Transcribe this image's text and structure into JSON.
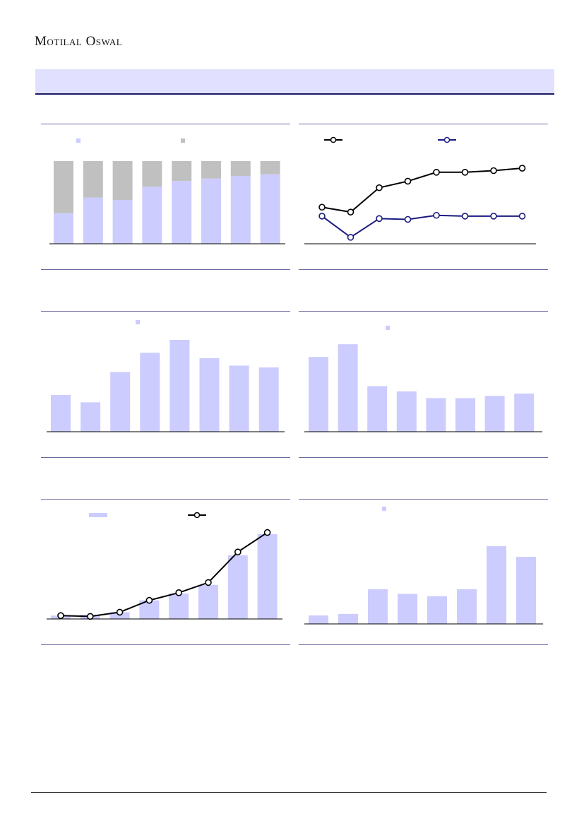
{
  "header": {
    "brand": "Motilal Oswal",
    "banner_title": ""
  },
  "colors": {
    "primary_bar": "#ccccff",
    "secondary_bar": "#c0c0c0",
    "line_black": "#000000",
    "line_navy": "#1a1a80",
    "rule": "#6b6ba0"
  },
  "chart_data": [
    {
      "type": "bar",
      "stacked": true,
      "legend": [
        "",
        ""
      ],
      "categories": [
        "",
        "",
        "",
        "",
        "",
        "",
        "",
        ""
      ],
      "series": [
        {
          "values": [
            37,
            56,
            53,
            69,
            76,
            79,
            82,
            84
          ]
        },
        {
          "values": [
            63,
            44,
            47,
            31,
            24,
            21,
            18,
            16
          ]
        }
      ],
      "ylim": [
        0,
        100
      ]
    },
    {
      "type": "line",
      "legend": [
        "",
        ""
      ],
      "categories": [
        "",
        "",
        "",
        "",
        "",
        "",
        "",
        ""
      ],
      "series": [
        {
          "values": [
            45,
            39,
            69,
            77,
            88,
            88,
            90,
            93
          ]
        },
        {
          "values": [
            34,
            8,
            31,
            30,
            35,
            34,
            34,
            34
          ]
        }
      ],
      "ylim": [
        0,
        100
      ]
    },
    {
      "type": "bar",
      "legend": [
        ""
      ],
      "categories": [
        "",
        "",
        "",
        "",
        "",
        "",
        "",
        ""
      ],
      "values": [
        40,
        32,
        65,
        86,
        100,
        80,
        72,
        70
      ],
      "ylim": [
        0,
        100
      ]
    },
    {
      "type": "bar",
      "legend": [
        ""
      ],
      "categories": [
        "",
        "",
        "",
        "",
        "",
        "",
        "",
        ""
      ],
      "values": [
        100,
        117,
        61,
        54,
        45,
        45,
        48,
        51
      ],
      "ylim": [
        0,
        120
      ]
    },
    {
      "type": "bar",
      "legend": [
        "",
        ""
      ],
      "categories": [
        "",
        "",
        "",
        "",
        "",
        "",
        "",
        ""
      ],
      "series": [
        {
          "values": [
            4,
            5,
            8,
            22,
            30,
            40,
            75,
            100
          ]
        },
        {
          "values": [
            4,
            3,
            8,
            22,
            31,
            43,
            79,
            102
          ]
        }
      ],
      "ylim": [
        0,
        105
      ]
    },
    {
      "type": "bar",
      "legend": [
        ""
      ],
      "categories": [
        "",
        "",
        "",
        "",
        "",
        "",
        "",
        ""
      ],
      "values": [
        11,
        13,
        45,
        39,
        36,
        45,
        101,
        87
      ],
      "ylim": [
        0,
        110
      ]
    }
  ]
}
